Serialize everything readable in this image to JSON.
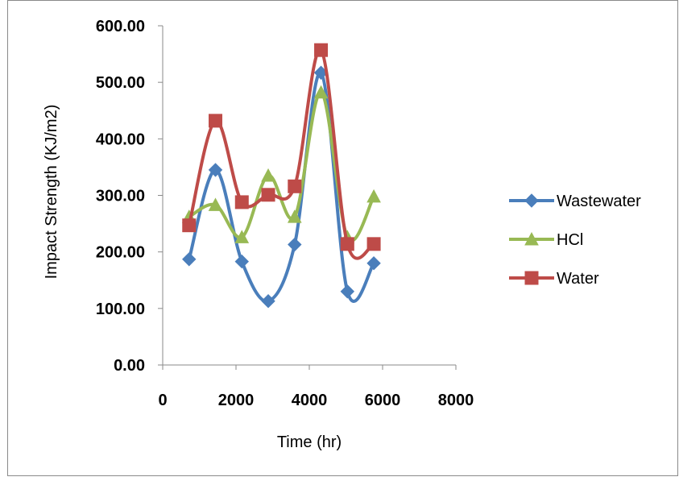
{
  "chart_data": {
    "type": "scatter",
    "xlabel": "Time (hr)",
    "ylabel": "Impact Strength (KJ/m2)",
    "xlim": [
      0,
      8000
    ],
    "ylim": [
      0,
      600
    ],
    "x_ticks": [
      "0",
      "2000",
      "4000",
      "6000",
      "8000"
    ],
    "y_ticks": [
      "0.00",
      "100.00",
      "200.00",
      "300.00",
      "400.00",
      "500.00",
      "600.00"
    ],
    "grid": false,
    "legend_position": "right",
    "line_style": "smoothed",
    "series": [
      {
        "name": "Wastewater",
        "color": "#4a7ebb",
        "marker": "diamond",
        "x": [
          720,
          1440,
          2160,
          2880,
          3600,
          4320,
          5040,
          5760
        ],
        "y": [
          187,
          345,
          183,
          113,
          213,
          517,
          130,
          180
        ]
      },
      {
        "name": "HCl",
        "color": "#98b954",
        "marker": "triangle",
        "x": [
          720,
          1440,
          2160,
          2880,
          3600,
          4320,
          5040,
          5760
        ],
        "y": [
          262,
          283,
          226,
          335,
          262,
          482,
          226,
          298
        ]
      },
      {
        "name": "Water",
        "color": "#be4b48",
        "marker": "square",
        "x": [
          720,
          1440,
          2160,
          2880,
          3600,
          4320,
          5040,
          5760
        ],
        "y": [
          247,
          432,
          288,
          301,
          316,
          557,
          214,
          214
        ]
      }
    ]
  }
}
